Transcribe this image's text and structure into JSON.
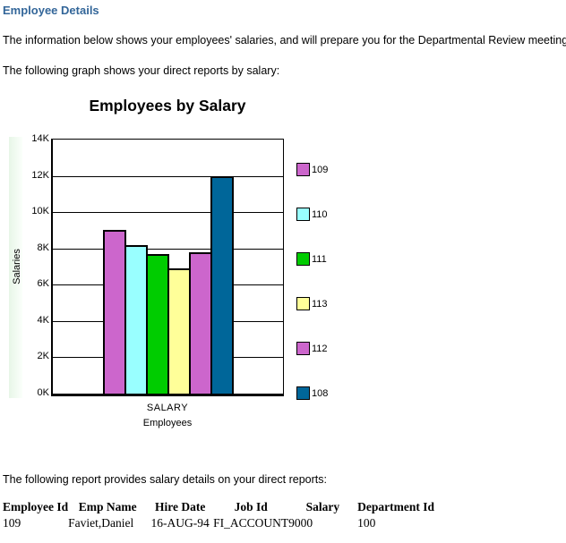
{
  "page": {
    "title": "Employee Details",
    "intro1": "The information below shows your employees' salaries, and will prepare you for the Departmental Review meeting.",
    "intro2": "The following graph shows your direct reports by salary:",
    "report_intro": "The following report provides salary details on your direct reports:"
  },
  "chart_data": {
    "type": "bar",
    "title": "Employees by Salary",
    "ylabel": "Salaries",
    "xlabel_primary": "SALARY",
    "xlabel_secondary": "Employees",
    "categories": [
      "109",
      "110",
      "111",
      "113",
      "112",
      "108"
    ],
    "values": [
      9000,
      8200,
      7700,
      6900,
      7800,
      12000
    ],
    "colors": [
      "#cc66cc",
      "#99ffff",
      "#00cc00",
      "#ffff99",
      "#cc66cc",
      "#006699"
    ],
    "ylim": [
      0,
      14000
    ],
    "ytick_step": 2000,
    "ytick_labels": [
      "0K",
      "2K",
      "4K",
      "6K",
      "8K",
      "10K",
      "12K",
      "14K"
    ],
    "grid": true,
    "legend_position": "right",
    "bar_outline_color": "#000000"
  },
  "table": {
    "headers": [
      "Employee Id",
      "Emp Name",
      "Hire Date",
      "Job Id",
      "Salary",
      "Department Id"
    ],
    "rows": [
      [
        "109",
        "Faviet,Daniel",
        "16-AUG-94",
        "FI_ACCOUNT",
        "9000",
        "100"
      ]
    ]
  }
}
